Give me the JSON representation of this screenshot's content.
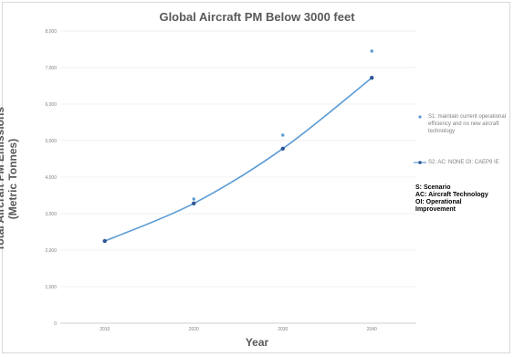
{
  "chart_data": {
    "type": "line",
    "title": "Global Aircraft PM Below 3000 feet",
    "xlabel": "Year",
    "ylabel": "Total Aircraft PM Emissions\n(Metric Tonnes)",
    "x": [
      2010,
      2020,
      2030,
      2040
    ],
    "x_tick_labels": [
      "2010",
      "2020",
      "2030",
      "2040"
    ],
    "ylim": [
      0,
      8000
    ],
    "y_ticks": [
      0,
      1000,
      2000,
      3000,
      4000,
      5000,
      6000,
      7000,
      8000
    ],
    "y_tick_labels": [
      "0",
      "1,000",
      "2,000",
      "3,000",
      "4,000",
      "5,000",
      "6,000",
      "7,000",
      "8,000"
    ],
    "grid": true,
    "legend_position": "right",
    "series": [
      {
        "name": "S1: maintain current operational efficiency and no new aircraft technology",
        "style": "markers",
        "color": "#5b9bd5",
        "values": [
          2250,
          3400,
          5150,
          7450
        ]
      },
      {
        "name": "S2: AC: NONE OI: CAEP9 IE",
        "style": "line-markers",
        "color": "#5b9bd5",
        "marker_color": "#2f5597",
        "values": [
          2250,
          3280,
          4780,
          6720
        ]
      }
    ],
    "notes": [
      "S: Scenario",
      "AC: Aircraft Technology",
      "OI: Operational",
      "Improvement"
    ]
  }
}
